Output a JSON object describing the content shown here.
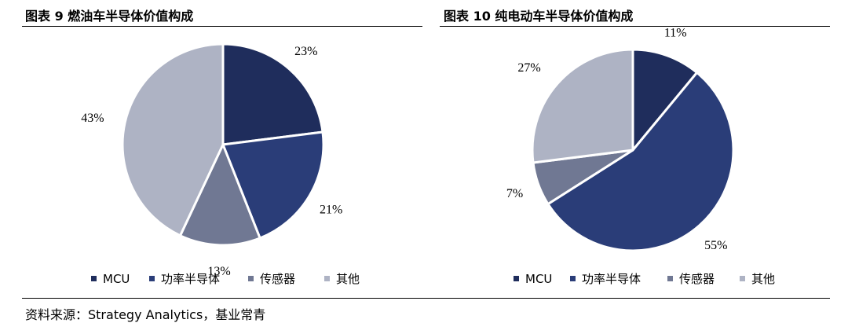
{
  "colors": {
    "mcu": "#1f2d5c",
    "power": "#2a3d78",
    "sensor": "#707893",
    "other": "#aeb3c4"
  },
  "chart_data": [
    {
      "type": "pie",
      "title": "图表 9  燃油车半导体价值构成",
      "categories": [
        "MCU",
        "功率半导体",
        "传感器",
        "其他"
      ],
      "values": [
        23,
        21,
        13,
        43
      ],
      "value_labels": [
        "23%",
        "21%",
        "13%",
        "43%"
      ],
      "legend": "bottom"
    },
    {
      "type": "pie",
      "title": "图表 10  纯电动车半导体价值构成",
      "categories": [
        "MCU",
        "功率半导体",
        "传感器",
        "其他"
      ],
      "values": [
        11,
        55,
        7,
        27
      ],
      "value_labels": [
        "11%",
        "55%",
        "7%",
        "27%"
      ],
      "legend": "bottom"
    }
  ],
  "source": "资料来源：Strategy Analytics，基业常青"
}
